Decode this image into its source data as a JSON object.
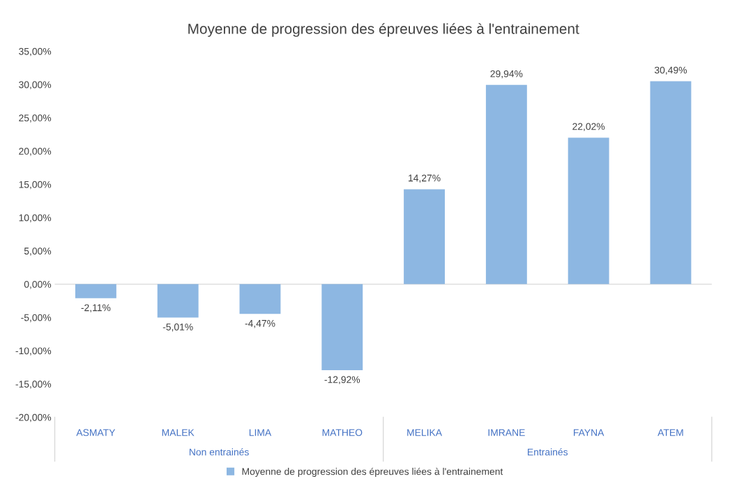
{
  "chart_data": {
    "type": "bar",
    "title": "Moyenne de progression des épreuves liées à l'entrainement",
    "categories": [
      "ASMATY",
      "MALEK",
      "LIMA",
      "MATHEO",
      "MELIKA",
      "IMRANE",
      "FAYNA",
      "ATEM"
    ],
    "series": [
      {
        "name": "Moyenne de progression des épreuves liées à l'entrainement",
        "color": "#8db7e2",
        "values": [
          -2.11,
          -5.01,
          -4.47,
          -12.92,
          14.27,
          29.94,
          22.02,
          30.49
        ],
        "value_labels": [
          "-2,11%",
          "-5,01%",
          "-4,47%",
          "-12,92%",
          "14,27%",
          "29,94%",
          "22,02%",
          "30,49%"
        ]
      }
    ],
    "ylim": [
      -20,
      35
    ],
    "yticks": [
      {
        "value": -20,
        "label": "-20,00%"
      },
      {
        "value": -15,
        "label": "-15,00%"
      },
      {
        "value": -10,
        "label": "-10,00%"
      },
      {
        "value": -5,
        "label": "-5,00%"
      },
      {
        "value": 0,
        "label": "0,00%"
      },
      {
        "value": 5,
        "label": "5,00%"
      },
      {
        "value": 10,
        "label": "10,00%"
      },
      {
        "value": 15,
        "label": "15,00%"
      },
      {
        "value": 20,
        "label": "20,00%"
      },
      {
        "value": 25,
        "label": "25,00%"
      },
      {
        "value": 30,
        "label": "30,00%"
      },
      {
        "value": 35,
        "label": "35,00%"
      }
    ],
    "annotations": [
      "Non entrainés",
      "Entrainés"
    ],
    "grid": false,
    "ref_lines": [
      {
        "axis": "y",
        "value": 0,
        "label": null,
        "color": "#d9d9d9"
      }
    ],
    "legend": "bottom"
  }
}
